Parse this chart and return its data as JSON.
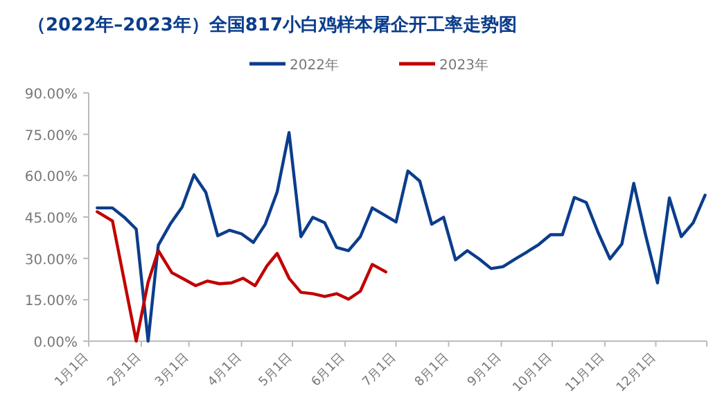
{
  "chart_data": {
    "type": "line",
    "title": "（2022年–2023年）全国817小白鸡样本屠企开工率走势图",
    "legend": "top",
    "marker": "none",
    "line_style": "solid",
    "grid": false,
    "xlim": [
      "--01-01",
      "--12-31"
    ],
    "xticks": [
      {
        "value": "--01-01",
        "label": "1月1日"
      },
      {
        "value": "--02-01",
        "label": "2月1日"
      },
      {
        "value": "--03-01",
        "label": "3月1日"
      },
      {
        "value": "--04-01",
        "label": "4月1日"
      },
      {
        "value": "--05-01",
        "label": "5月1日"
      },
      {
        "value": "--06-01",
        "label": "6月1日"
      },
      {
        "value": "--07-01",
        "label": "7月1日"
      },
      {
        "value": "--08-01",
        "label": "8月1日"
      },
      {
        "value": "--09-01",
        "label": "9月1日"
      },
      {
        "value": "--10-01",
        "label": "10月1日"
      },
      {
        "value": "--11-01",
        "label": "11月1日"
      },
      {
        "value": "--12-01",
        "label": "12月1日"
      },
      {
        "value": "--12-31",
        "label": null
      }
    ],
    "ylim": [
      0,
      90
    ],
    "yticks": [
      {
        "value": 0,
        "label": "0.00%"
      },
      {
        "value": 15,
        "label": "15.00%"
      },
      {
        "value": 30,
        "label": "30.00%"
      },
      {
        "value": 45,
        "label": "45.00%"
      },
      {
        "value": 60,
        "label": "60.00%"
      },
      {
        "value": 75,
        "label": "75.00%"
      },
      {
        "value": 90,
        "label": "90.00%"
      }
    ],
    "series": [
      {
        "name": "2022年",
        "color": "#0b3d8c",
        "x": [
          "--01-06",
          "--01-15",
          "--01-22",
          "--01-29",
          "--02-05",
          "--02-11",
          "--02-18",
          "--02-25",
          "--03-04",
          "--03-11",
          "--03-18",
          "--03-25",
          "--04-01",
          "--04-08",
          "--04-15",
          "--04-22",
          "--04-29",
          "--05-06",
          "--05-13",
          "--05-20",
          "--05-27",
          "--06-03",
          "--06-10",
          "--06-17",
          "--06-24",
          "--07-01",
          "--07-08",
          "--07-15",
          "--07-22",
          "--07-29",
          "--08-05",
          "--08-12",
          "--08-19",
          "--08-26",
          "--09-02",
          "--09-09",
          "--09-16",
          "--09-23",
          "--09-30",
          "--10-07",
          "--10-14",
          "--10-21",
          "--10-28",
          "--11-04",
          "--11-11",
          "--11-18",
          "--11-25",
          "--12-02",
          "--12-09",
          "--12-16",
          "--12-23",
          "--12-30"
        ],
        "values": [
          48.3,
          48.3,
          44.9,
          40.6,
          0,
          34.8,
          42.4,
          48.6,
          60.3,
          53.9,
          38.2,
          40.2,
          38.9,
          35.8,
          42.4,
          54.1,
          75.6,
          37.9,
          44.9,
          42.9,
          34,
          32.8,
          37.9,
          48.3,
          45.8,
          43.2,
          61.7,
          58,
          42.4,
          44.9,
          29.5,
          32.8,
          29.8,
          26.3,
          27,
          29.7,
          32.3,
          35,
          38.6,
          38.6,
          52.1,
          50.3,
          39.4,
          29.8,
          35.2,
          57.2,
          38.4,
          21.1,
          51.9,
          37.9,
          42.9,
          52.9
        ]
      },
      {
        "name": "2023年",
        "color": "#c00000",
        "x": [
          "--01-06",
          "--01-15",
          "--01-29",
          "--02-05",
          "--02-11",
          "--02-19",
          "--02-26",
          "--03-05",
          "--03-12",
          "--03-19",
          "--03-26",
          "--04-02",
          "--04-09",
          "--04-16",
          "--04-22",
          "--04-29",
          "--05-06",
          "--05-13",
          "--05-20",
          "--05-27",
          "--06-03",
          "--06-10",
          "--06-17",
          "--06-25"
        ],
        "values": [
          46.9,
          43.6,
          0,
          21.4,
          32.8,
          24.8,
          22.5,
          20.1,
          21.8,
          20.8,
          21.1,
          22.8,
          20.1,
          27.3,
          31.8,
          22.8,
          17.7,
          17.2,
          16.2,
          17.2,
          15.2,
          18.1,
          27.8,
          25.1
        ]
      }
    ]
  }
}
